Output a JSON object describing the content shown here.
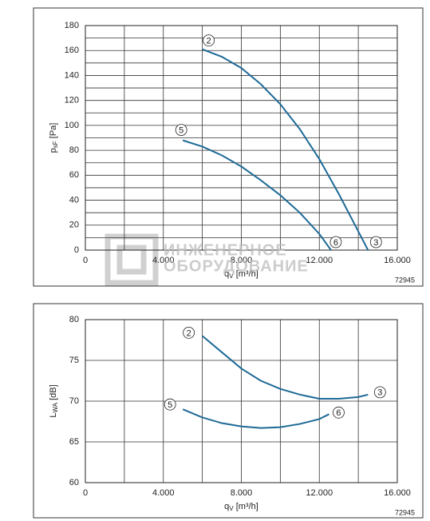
{
  "chart_data": [
    {
      "type": "line",
      "ylabel": [
        "p",
        "sF",
        " [Pa]"
      ],
      "xlabel": [
        "q",
        "V",
        " [m³/h]"
      ],
      "code": "72945",
      "watermark": [
        "ИНЖЕНЕРНОЕ",
        "ОБОРУДОВАНИЕ"
      ],
      "xlim": [
        0,
        16000
      ],
      "xticks": [
        0,
        {
          "value": 4000,
          "label": "4.000"
        },
        {
          "value": 8000,
          "label": "8.000"
        },
        {
          "value": 12000,
          "label": "12.000"
        },
        {
          "value": 16000,
          "label": "16.000"
        }
      ],
      "ylim": [
        0,
        180
      ],
      "yticks": [
        0,
        20,
        40,
        60,
        80,
        100,
        120,
        140,
        160,
        180
      ],
      "grid": true,
      "series": [
        {
          "start_label": "2",
          "end_label": "3",
          "color": "#1e6a96",
          "x": [
            6000,
            7000,
            8000,
            9000,
            10000,
            11000,
            12000,
            13000,
            14000,
            14500
          ],
          "values": [
            161,
            155,
            146,
            133,
            117,
            97,
            73,
            45,
            15,
            0
          ]
        },
        {
          "start_label": "5",
          "end_label": "6",
          "color": "#1e6a96",
          "x": [
            5000,
            6000,
            7000,
            8000,
            9000,
            10000,
            11000,
            12000,
            12600
          ],
          "values": [
            88,
            83,
            76,
            67,
            56,
            44,
            30,
            13,
            0
          ]
        }
      ]
    },
    {
      "type": "line",
      "ylabel": [
        "L",
        "WA",
        " [dB]"
      ],
      "xlabel": [
        "q",
        "V",
        " [m³/h]"
      ],
      "code": "72945",
      "xlim": [
        0,
        16000
      ],
      "xticks": [
        0,
        {
          "value": 4000,
          "label": "4.000"
        },
        {
          "value": 8000,
          "label": "8.000"
        },
        {
          "value": 12000,
          "label": "12.000"
        },
        {
          "value": 16000,
          "label": "16.000"
        }
      ],
      "ylim": [
        60,
        80
      ],
      "yticks": [
        60,
        65,
        70,
        75,
        80
      ],
      "grid": true,
      "series": [
        {
          "start_label": "2",
          "end_label": "3",
          "color": "#1e6a96",
          "x": [
            6000,
            7000,
            8000,
            9000,
            10000,
            11000,
            12000,
            13000,
            14000,
            14500
          ],
          "values": [
            78,
            76,
            74,
            72.5,
            71.5,
            70.8,
            70.3,
            70.3,
            70.5,
            70.8
          ]
        },
        {
          "start_label": "5",
          "end_label": "6",
          "color": "#1e6a96",
          "x": [
            5000,
            6000,
            7000,
            8000,
            9000,
            10000,
            11000,
            12000,
            12500
          ],
          "values": [
            69,
            68,
            67.3,
            66.9,
            66.7,
            66.8,
            67.2,
            67.8,
            68.4
          ]
        }
      ]
    }
  ]
}
